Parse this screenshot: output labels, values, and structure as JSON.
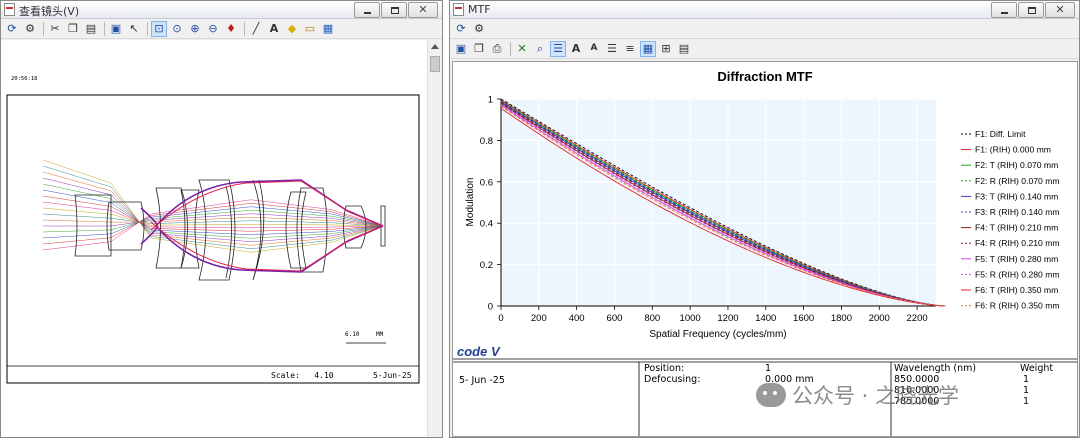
{
  "left_window": {
    "title": "查看镜头(V)",
    "time_label": "20:56:18",
    "scale_bar_value": "6.10",
    "scale_bar_unit": "MM",
    "scale_text": "Scale:   4.10",
    "date_text": "5-Jun-25"
  },
  "right_window": {
    "title": "MTF",
    "logo_text": "code V"
  },
  "chart_data": {
    "type": "line",
    "title": "Diffraction MTF",
    "xlabel": "Spatial Frequency (cycles/mm)",
    "ylabel": "Modulation",
    "xlim": [
      0,
      2300
    ],
    "ylim": [
      0,
      1
    ],
    "xticks": [
      0,
      200,
      400,
      600,
      800,
      1000,
      1200,
      1400,
      1600,
      1800,
      2000,
      2200
    ],
    "yticks": [
      0,
      0.2,
      0.4,
      0.6,
      0.8,
      1
    ],
    "ytick_labels": [
      "0",
      "0.2",
      "0.4",
      "0.6",
      "0.8",
      "1"
    ],
    "grid": true,
    "legend_position": "right",
    "series": [
      {
        "name": "F1: Diff. Limit",
        "color": "#000000",
        "dash": true,
        "factor": 1.0
      },
      {
        "name": "F1: (RIH) 0.000 mm",
        "color": "#e8202a",
        "dash": false,
        "factor": 0.995
      },
      {
        "name": "F2: T (RIH) 0.070 mm",
        "color": "#22a024",
        "dash": false,
        "factor": 0.99
      },
      {
        "name": "F2: R (RIH) 0.070 mm",
        "color": "#22a024",
        "dash": true,
        "factor": 0.992
      },
      {
        "name": "F3: T (RIH) 0.140 mm",
        "color": "#3b3bd0",
        "dash": false,
        "factor": 0.985
      },
      {
        "name": "F3: R (RIH) 0.140 mm",
        "color": "#3b3bd0",
        "dash": true,
        "factor": 0.988
      },
      {
        "name": "F4: T (RIH) 0.210 mm",
        "color": "#8b1a1a",
        "dash": false,
        "factor": 0.978
      },
      {
        "name": "F4: R (RIH) 0.210 mm",
        "color": "#8b1a1a",
        "dash": true,
        "factor": 0.982
      },
      {
        "name": "F5: T (RIH) 0.280 mm",
        "color": "#d040d8",
        "dash": false,
        "factor": 0.97
      },
      {
        "name": "F5: R (RIH) 0.280 mm",
        "color": "#d040d8",
        "dash": true,
        "factor": 0.975
      },
      {
        "name": "F6: T (RIH) 0.350 mm",
        "color": "#e8202a",
        "dash": false,
        "factor": 0.955
      },
      {
        "name": "F6: R (RIH) 0.350 mm",
        "color": "#f07020",
        "dash": true,
        "factor": 0.965
      }
    ],
    "cutoff": 2350
  },
  "footer": {
    "date": "5- Jun -25",
    "position_label": "Position:",
    "position_value": "1",
    "defocusing_label": "Defocusing:",
    "defocusing_value": "0.000 mm",
    "wavelength_header": "Wavelength (nm)",
    "weight_header": "Weight",
    "wavelengths": [
      "850.0000",
      "810.0000",
      "785.0000"
    ],
    "weights": [
      "1",
      "1",
      "1"
    ]
  },
  "watermark": {
    "text": "公众号 · 之晓光学"
  }
}
